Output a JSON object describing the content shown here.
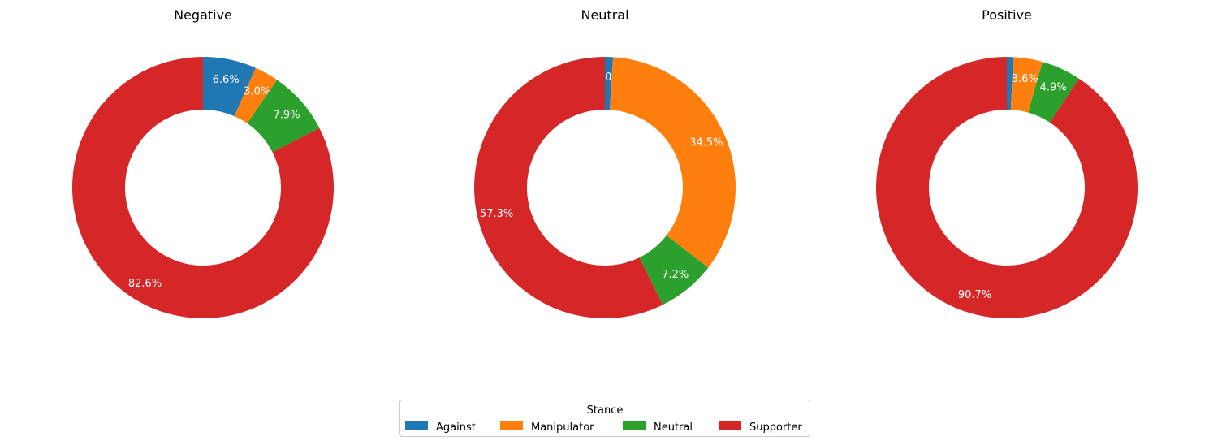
{
  "chart_data": [
    {
      "type": "pie",
      "title": "Negative",
      "categories": [
        "Against",
        "Manipulator",
        "Neutral",
        "Supporter"
      ],
      "values": [
        6.6,
        3.0,
        7.9,
        82.6
      ],
      "labels": [
        "6.6%",
        "3.0%",
        "7.9%",
        "82.6%"
      ]
    },
    {
      "type": "pie",
      "title": "Neutral",
      "categories": [
        "Against",
        "Manipulator",
        "Neutral",
        "Supporter"
      ],
      "values": [
        1.0,
        34.5,
        7.2,
        57.3
      ],
      "labels": [
        "1.0%",
        "34.5%",
        "7.2%",
        "57.3%"
      ]
    },
    {
      "type": "pie",
      "title": "Positive",
      "categories": [
        "Against",
        "Manipulator",
        "Neutral",
        "Supporter"
      ],
      "values": [
        0.8,
        3.6,
        4.9,
        90.7
      ],
      "labels": [
        "",
        "3.6%",
        "4.9%",
        "90.7%"
      ]
    }
  ],
  "legend": {
    "title": "Stance",
    "placement": "bottom-center",
    "items": [
      "Against",
      "Manipulator",
      "Neutral",
      "Supporter"
    ]
  },
  "colors": {
    "Against": "#1f77b4",
    "Manipulator": "#ff7f0e",
    "Neutral": "#2ca02c",
    "Supporter": "#d62728"
  }
}
